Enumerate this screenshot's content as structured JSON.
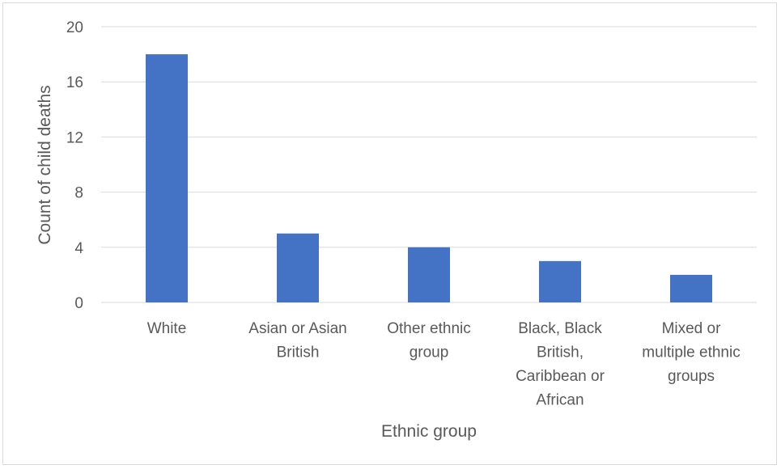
{
  "chart_data": {
    "type": "bar",
    "title": "",
    "xlabel": "Ethnic group",
    "ylabel": "Count of child deaths",
    "categories": [
      [
        "White"
      ],
      [
        "Asian or Asian",
        "British"
      ],
      [
        "Other ethnic",
        "group"
      ],
      [
        "Black, Black",
        "British,",
        "Caribbean or",
        "African"
      ],
      [
        "Mixed or",
        "multiple ethnic",
        "groups"
      ]
    ],
    "values": [
      18,
      5,
      4,
      3,
      2
    ],
    "ylim": [
      0,
      20
    ],
    "yticks": [
      "0",
      "4",
      "8",
      "12",
      "16",
      "20"
    ],
    "grid": true,
    "legend": "none",
    "bar_color": "#4472C4",
    "grid_color": "#d9d9d9"
  }
}
